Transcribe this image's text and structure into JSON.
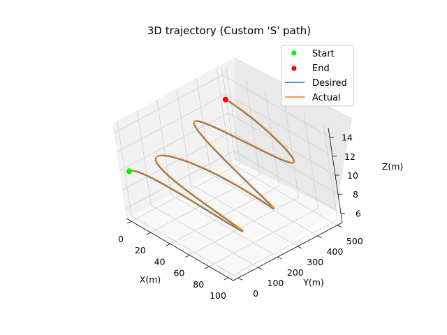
{
  "chart_data": {
    "type": "line",
    "projection": "3d",
    "title": "3D trajectory (Custom 'S' path)",
    "xlabel": "X(m)",
    "ylabel": "Y(m)",
    "zlabel": "Z(m)",
    "xlim": [
      -5,
      105
    ],
    "ylim": [
      -25,
      525
    ],
    "zlim": [
      5,
      15
    ],
    "xticks": [
      0,
      20,
      40,
      60,
      80,
      100
    ],
    "yticks": [
      0,
      100,
      200,
      300,
      400,
      500
    ],
    "zticks": [
      6,
      8,
      10,
      12,
      14
    ],
    "grid": true,
    "legend": {
      "position": "top-right"
    },
    "markers": [
      {
        "name": "Start",
        "color": "#00ee00",
        "x": 0,
        "y": 0,
        "z": 10
      },
      {
        "name": "End",
        "color": "#ff0000",
        "x": 0,
        "y": 500,
        "z": 12
      }
    ],
    "series": [
      {
        "name": "Desired",
        "color": "#1f77b4"
      },
      {
        "name": "Actual",
        "color": "#ff7f0e"
      }
    ],
    "path": {
      "x": [
        0,
        0.6,
        2.5,
        5.5,
        9.5,
        14.5,
        20.6,
        27.4,
        35,
        43,
        51.5,
        60.1,
        68.7,
        76.9,
        84.5,
        91.2,
        96.7,
        100.9,
        103.6,
        104.6,
        103.8,
        101.3,
        97.2,
        91.6,
        84.9,
        77.3,
        69,
        60.3,
        51.5,
        42.6,
        34,
        26,
        18.9,
        12.6,
        7.6,
        3.9,
        1.7,
        1,
        1.9,
        4.3,
        8.2,
        13.3,
        19.7,
        27,
        35.1,
        43.8,
        52.6,
        61.3,
        69.9,
        77.8,
        85,
        91.1,
        96.1,
        99.6,
        101.7,
        102.2,
        100.9,
        98.1,
        93.9,
        88.3,
        81.6,
        74,
        65.9,
        57.3,
        48.6,
        40,
        31.9,
        24.5,
        18.1,
        12.8,
        8.6,
        5.7,
        4.1,
        3.9,
        5,
        7.3,
        10.9,
        15.6,
        21.3,
        27.7,
        34.6,
        41.9,
        49.3,
        56.5,
        63.4,
        69.6,
        75,
        79.4,
        82.6,
        84.5,
        85.1,
        84.2,
        82,
        78.4,
        73.5,
        67.5,
        60.5,
        52.7,
        44.3,
        35.3,
        26.1,
        16.9,
        8,
        0
      ],
      "y": [
        0,
        2.5,
        6.1,
        9.4,
        12.2,
        14.5,
        16.4,
        17.9,
        19.3,
        20.6,
        22,
        23.7,
        25.6,
        28,
        30.9,
        34.2,
        38.1,
        42.6,
        47.4,
        52.7,
        58.2,
        63.9,
        69.5,
        75,
        80.2,
        85,
        89.3,
        93.1,
        96.5,
        99.6,
        102.4,
        105.2,
        108,
        111.2,
        114.7,
        118.8,
        123.4,
        128.6,
        134.4,
        140.7,
        147.3,
        154.2,
        161.1,
        167.9,
        174.4,
        180.5,
        186,
        191,
        195.5,
        199.7,
        203.6,
        207.4,
        211.3,
        215.4,
        220,
        225.2,
        230.9,
        237.1,
        243.8,
        250.8,
        258.1,
        265.4,
        272.5,
        279.4,
        285.8,
        291.6,
        296.8,
        301.3,
        305.2,
        308.6,
        311.7,
        314.7,
        317.8,
        321.2,
        325.1,
        329.5,
        334.7,
        340.6,
        347.1,
        354.1,
        361.6,
        369.3,
        377.1,
        384.6,
        391.9,
        398.6,
        404.8,
        410.3,
        415.1,
        419.4,
        423.3,
        427.1,
        430.9,
        435.1,
        439.8,
        445.3,
        451.6,
        458.7,
        466.5,
        474.5,
        482.5,
        490,
        496,
        500
      ],
      "z": [
        10,
        10.05,
        10.12,
        10.17,
        10.22,
        10.26,
        10.28,
        10.28,
        10.27,
        10.24,
        10.2,
        10.13,
        10.05,
        9.96,
        9.86,
        9.75,
        9.63,
        9.51,
        9.39,
        9.28,
        9.17,
        9.07,
        8.98,
        8.91,
        8.87,
        8.84,
        8.83,
        8.85,
        8.89,
        8.95,
        9.04,
        9.15,
        9.27,
        9.41,
        9.56,
        9.72,
        9.88,
        10.04,
        10.19,
        10.33,
        10.46,
        10.57,
        10.65,
        10.71,
        10.73,
        10.73,
        10.7,
        10.63,
        10.55,
        10.44,
        10.31,
        10.17,
        10.02,
        9.88,
        9.74,
        9.62,
        9.52,
        9.45,
        9.41,
        9.41,
        9.45,
        9.53,
        9.65,
        9.8,
        9.99,
        10.2,
        10.43,
        10.66,
        10.9,
        11.14,
        11.35,
        11.55,
        11.72,
        11.85,
        11.95,
        12.01,
        12.02,
        12,
        11.95,
        11.87,
        11.77,
        11.66,
        11.55,
        11.44,
        11.34,
        11.26,
        11.2,
        11.18,
        11.19,
        11.23,
        11.31,
        11.42,
        11.55,
        11.69,
        11.83,
        11.96,
        12.06,
        12.14,
        12.18,
        12.18,
        12.15,
        12.1,
        12.05,
        12
      ]
    }
  }
}
